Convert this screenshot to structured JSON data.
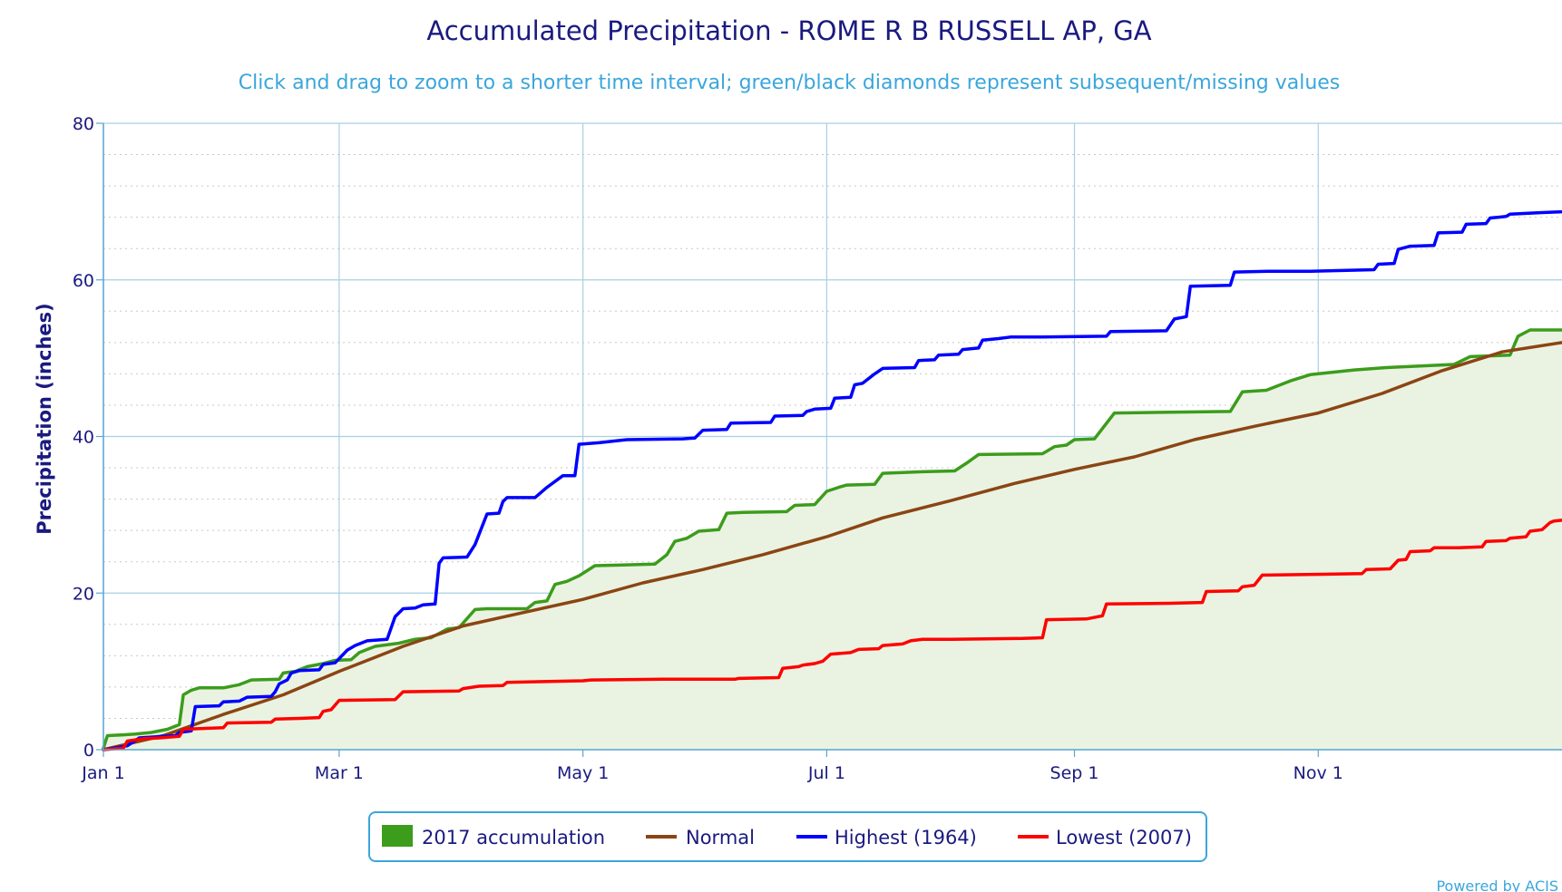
{
  "chart_data": {
    "type": "line",
    "title": "Accumulated Precipitation - ROME R B RUSSELL AP, GA",
    "subtitle": "Click and drag to zoom to a shorter time interval; green/black diamonds represent subsequent/missing values",
    "ylabel": "Precipitation (inches)",
    "xlabel": "",
    "xlim": [
      0,
      365
    ],
    "ylim": [
      0,
      80
    ],
    "y_ticks": [
      "0",
      "20",
      "40",
      "60",
      "80"
    ],
    "x_ticks": [
      {
        "label": "Jan 1",
        "day": 0
      },
      {
        "label": "Mar 1",
        "day": 59
      },
      {
        "label": "May 1",
        "day": 120
      },
      {
        "label": "Jul 1",
        "day": 181
      },
      {
        "label": "Sep 1",
        "day": 243
      },
      {
        "label": "Nov 1",
        "day": 304
      }
    ],
    "grid": true,
    "legend_position": "bottom-center",
    "credit": "Powered by ACIS",
    "series": [
      {
        "name": "2017 accumulation",
        "style": "area",
        "color": "#3c9c1c",
        "fill": "#eaf3e2",
        "points": [
          [
            0,
            0.2
          ],
          [
            1,
            1.8
          ],
          [
            5,
            1.9
          ],
          [
            8,
            2.0
          ],
          [
            12,
            2.2
          ],
          [
            16,
            2.6
          ],
          [
            19,
            3.2
          ],
          [
            20,
            7.0
          ],
          [
            22,
            7.6
          ],
          [
            24,
            7.9
          ],
          [
            30,
            7.9
          ],
          [
            34,
            8.3
          ],
          [
            37,
            8.9
          ],
          [
            44,
            9.0
          ],
          [
            45,
            9.8
          ],
          [
            48,
            10.0
          ],
          [
            51,
            10.6
          ],
          [
            55,
            11.0
          ],
          [
            58,
            11.4
          ],
          [
            62,
            11.5
          ],
          [
            64,
            12.4
          ],
          [
            66,
            12.8
          ],
          [
            68,
            13.2
          ],
          [
            74,
            13.6
          ],
          [
            78,
            14.1
          ],
          [
            82,
            14.3
          ],
          [
            86,
            15.4
          ],
          [
            89,
            15.6
          ],
          [
            93,
            17.9
          ],
          [
            96,
            18.0
          ],
          [
            106,
            18.0
          ],
          [
            108,
            18.8
          ],
          [
            111,
            19.0
          ],
          [
            113,
            21.1
          ],
          [
            116,
            21.5
          ],
          [
            119,
            22.2
          ],
          [
            123,
            23.5
          ],
          [
            130,
            23.6
          ],
          [
            138,
            23.7
          ],
          [
            141,
            24.9
          ],
          [
            143,
            26.6
          ],
          [
            146,
            27.0
          ],
          [
            149,
            27.9
          ],
          [
            154,
            28.1
          ],
          [
            156,
            30.2
          ],
          [
            160,
            30.3
          ],
          [
            171,
            30.4
          ],
          [
            173,
            31.2
          ],
          [
            178,
            31.3
          ],
          [
            181,
            33.0
          ],
          [
            184,
            33.5
          ],
          [
            186,
            33.8
          ],
          [
            193,
            33.9
          ],
          [
            195,
            35.3
          ],
          [
            200,
            35.4
          ],
          [
            205,
            35.5
          ],
          [
            213,
            35.6
          ],
          [
            216,
            36.6
          ],
          [
            219,
            37.7
          ],
          [
            235,
            37.8
          ],
          [
            238,
            38.7
          ],
          [
            241,
            38.9
          ],
          [
            243,
            39.6
          ],
          [
            248,
            39.7
          ],
          [
            253,
            43.0
          ],
          [
            282,
            43.2
          ],
          [
            285,
            45.7
          ],
          [
            291,
            45.9
          ],
          [
            297,
            47.1
          ],
          [
            302,
            47.9
          ],
          [
            313,
            48.5
          ],
          [
            321,
            48.8
          ],
          [
            338,
            49.2
          ],
          [
            342,
            50.2
          ],
          [
            352,
            50.4
          ],
          [
            354,
            52.8
          ],
          [
            357,
            53.6
          ],
          [
            365,
            53.6
          ]
        ]
      },
      {
        "name": "Normal",
        "style": "line",
        "color": "#8b4513",
        "points": [
          [
            0,
            0
          ],
          [
            15,
            1.8
          ],
          [
            30,
            4.5
          ],
          [
            45,
            7.0
          ],
          [
            59,
            10.0
          ],
          [
            75,
            13.2
          ],
          [
            90,
            15.8
          ],
          [
            105,
            17.5
          ],
          [
            120,
            19.2
          ],
          [
            135,
            21.3
          ],
          [
            150,
            23.0
          ],
          [
            165,
            24.9
          ],
          [
            181,
            27.2
          ],
          [
            195,
            29.6
          ],
          [
            212,
            31.8
          ],
          [
            228,
            34.0
          ],
          [
            243,
            35.8
          ],
          [
            258,
            37.4
          ],
          [
            273,
            39.6
          ],
          [
            288,
            41.3
          ],
          [
            304,
            43.0
          ],
          [
            320,
            45.5
          ],
          [
            335,
            48.4
          ],
          [
            350,
            50.8
          ],
          [
            365,
            52.0
          ]
        ]
      },
      {
        "name": "Highest (1964)",
        "style": "line",
        "color": "#0000ff",
        "points": [
          [
            0,
            0
          ],
          [
            6,
            0.5
          ],
          [
            9,
            1.5
          ],
          [
            15,
            1.7
          ],
          [
            18,
            1.8
          ],
          [
            19,
            2.2
          ],
          [
            22,
            2.4
          ],
          [
            23,
            5.5
          ],
          [
            29,
            5.6
          ],
          [
            30,
            6.1
          ],
          [
            34,
            6.2
          ],
          [
            36,
            6.7
          ],
          [
            42,
            6.8
          ],
          [
            43,
            7.4
          ],
          [
            44,
            8.4
          ],
          [
            46,
            8.9
          ],
          [
            47,
            9.8
          ],
          [
            49,
            10.1
          ],
          [
            54,
            10.2
          ],
          [
            55,
            10.9
          ],
          [
            58,
            11.1
          ],
          [
            61,
            12.7
          ],
          [
            63,
            13.3
          ],
          [
            66,
            13.9
          ],
          [
            71,
            14.1
          ],
          [
            73,
            17.0
          ],
          [
            75,
            18.0
          ],
          [
            78,
            18.1
          ],
          [
            80,
            18.5
          ],
          [
            83,
            18.6
          ],
          [
            84,
            23.8
          ],
          [
            85,
            24.5
          ],
          [
            91,
            24.6
          ],
          [
            93,
            26.2
          ],
          [
            96,
            30.1
          ],
          [
            99,
            30.2
          ],
          [
            100,
            31.7
          ],
          [
            101,
            32.2
          ],
          [
            108,
            32.2
          ],
          [
            111,
            33.5
          ],
          [
            115,
            35.0
          ],
          [
            118,
            35.0
          ],
          [
            119,
            39.0
          ],
          [
            124,
            39.2
          ],
          [
            131,
            39.6
          ],
          [
            145,
            39.7
          ],
          [
            148,
            39.8
          ],
          [
            150,
            40.8
          ],
          [
            156,
            40.9
          ],
          [
            157,
            41.7
          ],
          [
            167,
            41.8
          ],
          [
            168,
            42.6
          ],
          [
            175,
            42.7
          ],
          [
            176,
            43.2
          ],
          [
            178,
            43.5
          ],
          [
            182,
            43.6
          ],
          [
            183,
            44.9
          ],
          [
            187,
            45.0
          ],
          [
            188,
            46.6
          ],
          [
            190,
            46.8
          ],
          [
            193,
            48.0
          ],
          [
            195,
            48.7
          ],
          [
            203,
            48.8
          ],
          [
            204,
            49.7
          ],
          [
            208,
            49.8
          ],
          [
            209,
            50.4
          ],
          [
            214,
            50.5
          ],
          [
            215,
            51.1
          ],
          [
            219,
            51.3
          ],
          [
            220,
            52.3
          ],
          [
            224,
            52.5
          ],
          [
            227,
            52.7
          ],
          [
            235,
            52.7
          ],
          [
            251,
            52.8
          ],
          [
            252,
            53.4
          ],
          [
            266,
            53.5
          ],
          [
            268,
            55.0
          ],
          [
            271,
            55.3
          ],
          [
            272,
            59.2
          ],
          [
            282,
            59.3
          ],
          [
            283,
            61.0
          ],
          [
            292,
            61.1
          ],
          [
            302,
            61.1
          ],
          [
            310,
            61.2
          ],
          [
            318,
            61.3
          ],
          [
            319,
            62.0
          ],
          [
            323,
            62.1
          ],
          [
            324,
            63.9
          ],
          [
            327,
            64.3
          ],
          [
            333,
            64.4
          ],
          [
            334,
            66.0
          ],
          [
            340,
            66.1
          ],
          [
            341,
            67.1
          ],
          [
            346,
            67.2
          ],
          [
            347,
            67.9
          ],
          [
            351,
            68.1
          ],
          [
            352,
            68.4
          ],
          [
            360,
            68.6
          ],
          [
            365,
            68.7
          ]
        ]
      },
      {
        "name": "Lowest (2007)",
        "style": "line",
        "color": "#ff0000",
        "points": [
          [
            0,
            0
          ],
          [
            5,
            0.2
          ],
          [
            6,
            1.1
          ],
          [
            10,
            1.4
          ],
          [
            14,
            1.5
          ],
          [
            19,
            1.7
          ],
          [
            20,
            2.6
          ],
          [
            24,
            2.7
          ],
          [
            30,
            2.8
          ],
          [
            31,
            3.4
          ],
          [
            42,
            3.5
          ],
          [
            43,
            3.9
          ],
          [
            49,
            4.0
          ],
          [
            54,
            4.1
          ],
          [
            55,
            4.9
          ],
          [
            57,
            5.1
          ],
          [
            59,
            6.3
          ],
          [
            73,
            6.4
          ],
          [
            75,
            7.4
          ],
          [
            89,
            7.5
          ],
          [
            90,
            7.8
          ],
          [
            94,
            8.1
          ],
          [
            100,
            8.2
          ],
          [
            101,
            8.6
          ],
          [
            110,
            8.7
          ],
          [
            120,
            8.8
          ],
          [
            122,
            8.9
          ],
          [
            140,
            9.0
          ],
          [
            158,
            9.0
          ],
          [
            159,
            9.1
          ],
          [
            169,
            9.2
          ],
          [
            170,
            10.4
          ],
          [
            174,
            10.6
          ],
          [
            175,
            10.8
          ],
          [
            178,
            11.0
          ],
          [
            180,
            11.3
          ],
          [
            182,
            12.2
          ],
          [
            187,
            12.4
          ],
          [
            189,
            12.8
          ],
          [
            194,
            12.9
          ],
          [
            195,
            13.3
          ],
          [
            200,
            13.5
          ],
          [
            202,
            13.9
          ],
          [
            205,
            14.1
          ],
          [
            212,
            14.1
          ],
          [
            230,
            14.2
          ],
          [
            235,
            14.3
          ],
          [
            236,
            16.6
          ],
          [
            246,
            16.7
          ],
          [
            250,
            17.1
          ],
          [
            251,
            18.6
          ],
          [
            267,
            18.7
          ],
          [
            275,
            18.8
          ],
          [
            276,
            20.2
          ],
          [
            284,
            20.3
          ],
          [
            285,
            20.8
          ],
          [
            288,
            21.0
          ],
          [
            290,
            22.3
          ],
          [
            305,
            22.4
          ],
          [
            315,
            22.5
          ],
          [
            316,
            23.0
          ],
          [
            322,
            23.1
          ],
          [
            324,
            24.2
          ],
          [
            326,
            24.3
          ],
          [
            327,
            25.3
          ],
          [
            332,
            25.4
          ],
          [
            333,
            25.8
          ],
          [
            339,
            25.8
          ],
          [
            345,
            25.9
          ],
          [
            346,
            26.6
          ],
          [
            351,
            26.7
          ],
          [
            352,
            27.0
          ],
          [
            356,
            27.2
          ],
          [
            357,
            27.9
          ],
          [
            360,
            28.1
          ],
          [
            362,
            29.0
          ],
          [
            363,
            29.2
          ],
          [
            365,
            29.3
          ]
        ]
      }
    ]
  }
}
